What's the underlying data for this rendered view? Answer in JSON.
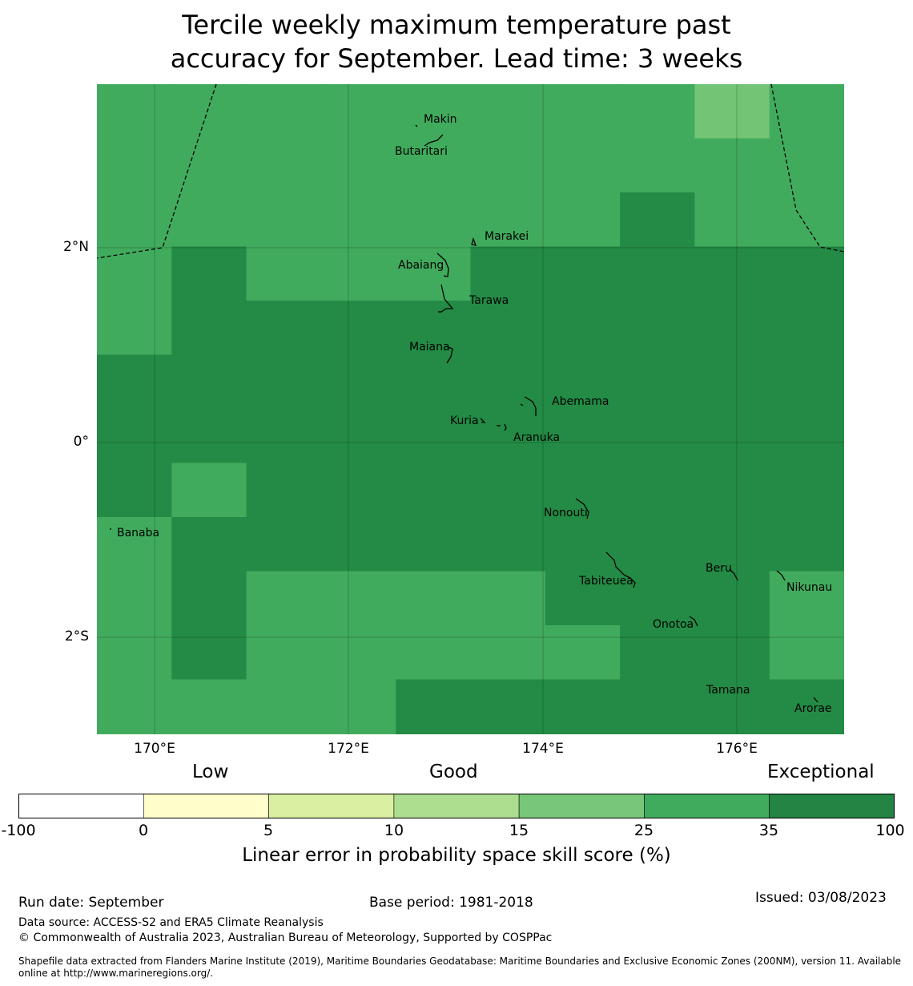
{
  "title": {
    "line1": "Tercile weekly maximum temperature past",
    "line2": "accuracy for September. Lead time: 3 weeks"
  },
  "map": {
    "lon_ticks": [
      "170°E",
      "172°E",
      "174°E",
      "176°E"
    ],
    "lat_ticks": [
      "2°N",
      "0°",
      "2°S"
    ],
    "places": [
      "Makin",
      "Butaritari",
      "Marakei",
      "Abaiang",
      "Tarawa",
      "Maiana",
      "Abemama",
      "Kuria",
      "Aranuka",
      "Nonouti",
      "Banaba",
      "Tabiteuea",
      "Beru",
      "Nikunau",
      "Onotoa",
      "Tamana",
      "Arorae"
    ],
    "grid_note": "Skill score cells: 2 = 25-35 band, 3 = 35-100 band, 1 = 15-25 band",
    "grid": [
      [
        2,
        2,
        2,
        2,
        2,
        2,
        2,
        2,
        1,
        2
      ],
      [
        2,
        2,
        2,
        2,
        2,
        2,
        2,
        2,
        2,
        2
      ],
      [
        2,
        2,
        2,
        2,
        2,
        2,
        2,
        3,
        2,
        2
      ],
      [
        2,
        3,
        2,
        2,
        2,
        3,
        3,
        3,
        3,
        3
      ],
      [
        2,
        3,
        3,
        3,
        3,
        3,
        3,
        3,
        3,
        3
      ],
      [
        3,
        3,
        3,
        3,
        3,
        3,
        3,
        3,
        3,
        3
      ],
      [
        3,
        3,
        3,
        3,
        3,
        3,
        3,
        3,
        3,
        3
      ],
      [
        3,
        2,
        3,
        3,
        3,
        3,
        3,
        3,
        3,
        3
      ],
      [
        2,
        3,
        3,
        3,
        3,
        3,
        3,
        3,
        3,
        3
      ],
      [
        2,
        3,
        2,
        2,
        2,
        2,
        3,
        3,
        3,
        2
      ],
      [
        2,
        3,
        2,
        2,
        2,
        2,
        2,
        3,
        3,
        2
      ],
      [
        2,
        2,
        2,
        2,
        3,
        3,
        3,
        3,
        3,
        3
      ]
    ],
    "colors": {
      "band1": "#74c476",
      "band2": "#41ab5d",
      "band3": "#238b45"
    }
  },
  "legend": {
    "categories": [
      "Low",
      "Good",
      "Exceptional"
    ],
    "ticks": [
      "-100",
      "0",
      "5",
      "10",
      "15",
      "25",
      "35",
      "100"
    ],
    "colors": [
      "#ffffff",
      "#ffffcc",
      "#d9f0a3",
      "#addd8e",
      "#78c679",
      "#41ab5d",
      "#238443"
    ],
    "label": "Linear error in probability space skill score (%)"
  },
  "footer": {
    "run_date": "Run date: September",
    "base_period": "Base period: 1981-2018",
    "issued": "Issued: 03/08/2023",
    "data_source": "Data source: ACCESS-S2 and ERA5 Climate Reanalysis",
    "copyright": "© Commonwealth of Australia 2023, Australian Bureau of Meteorology, Supported by COSPPac",
    "shapefile": "Shapefile data extracted from Flanders Marine Institute (2019), Maritime Boundaries Geodatabase: Maritime Boundaries and Exclusive Economic Zones (200NM), version 11. Available online at http://www.marineregions.org/."
  }
}
